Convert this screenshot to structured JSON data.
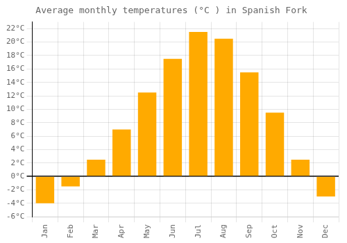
{
  "chart_data": {
    "type": "bar",
    "title": "Average monthly temperatures (°C ) in Spanish Fork",
    "categories": [
      "Jan",
      "Feb",
      "Mar",
      "Apr",
      "May",
      "Jun",
      "Jul",
      "Aug",
      "Sep",
      "Oct",
      "Nov",
      "Dec"
    ],
    "values": [
      -4.0,
      -1.5,
      2.5,
      7.0,
      12.5,
      17.5,
      21.5,
      20.5,
      15.5,
      9.5,
      2.5,
      -3.0
    ],
    "color": "#FFAA00",
    "ylim": [
      -6,
      23
    ],
    "yticks": [
      {
        "value": -6,
        "label": "-6°C"
      },
      {
        "value": -4,
        "label": "-4°C"
      },
      {
        "value": -2,
        "label": "-2°C"
      },
      {
        "value": 0,
        "label": "0°C"
      },
      {
        "value": 2,
        "label": "2°C"
      },
      {
        "value": 4,
        "label": "4°C"
      },
      {
        "value": 6,
        "label": "6°C"
      },
      {
        "value": 8,
        "label": "8°C"
      },
      {
        "value": 10,
        "label": "10°C"
      },
      {
        "value": 12,
        "label": "12°C"
      },
      {
        "value": 14,
        "label": "14°C"
      },
      {
        "value": 16,
        "label": "16°C"
      },
      {
        "value": 18,
        "label": "18°C"
      },
      {
        "value": 20,
        "label": "20°C"
      },
      {
        "value": 22,
        "label": "22°C"
      }
    ],
    "grid": true
  }
}
